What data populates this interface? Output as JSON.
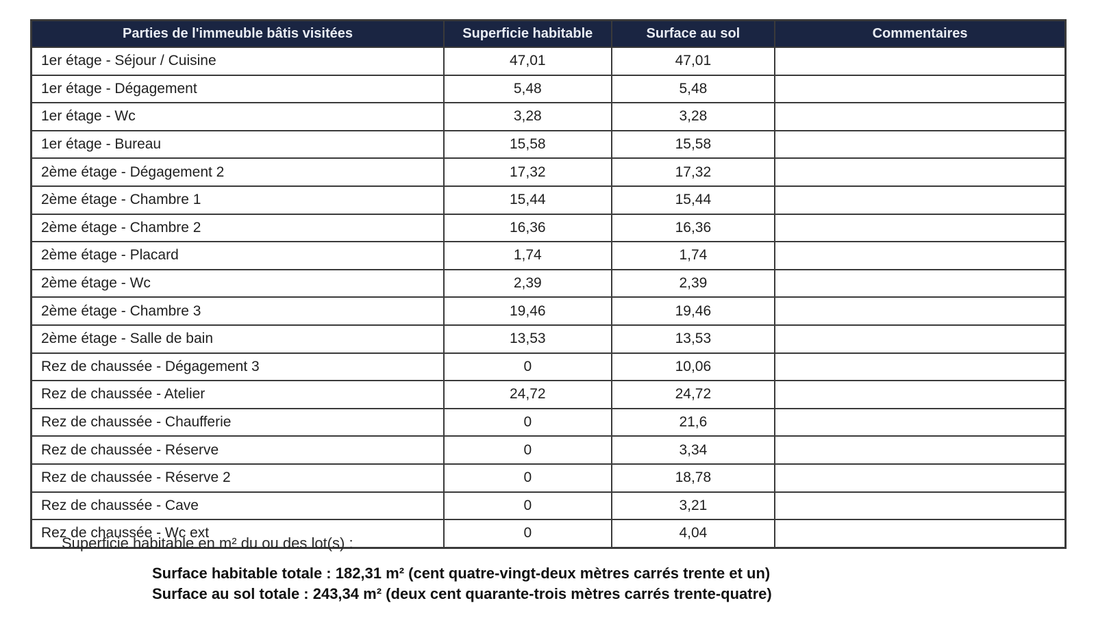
{
  "colors": {
    "header_bg": "#1a2542",
    "header_text": "#e9edf4",
    "border": "#3a3a3a"
  },
  "table": {
    "headers": [
      "Parties de l'immeuble bâtis visitées",
      "Superficie habitable",
      "Surface au sol",
      "Commentaires"
    ],
    "rows": [
      {
        "label": "1er étage - Séjour / Cuisine",
        "superficie": "47,01",
        "surface": "47,01",
        "commentaires": ""
      },
      {
        "label": "1er étage - Dégagement",
        "superficie": "5,48",
        "surface": "5,48",
        "commentaires": ""
      },
      {
        "label": "1er étage - Wc",
        "superficie": "3,28",
        "surface": "3,28",
        "commentaires": ""
      },
      {
        "label": "1er étage - Bureau",
        "superficie": "15,58",
        "surface": "15,58",
        "commentaires": ""
      },
      {
        "label": "2ème étage - Dégagement 2",
        "superficie": "17,32",
        "surface": "17,32",
        "commentaires": ""
      },
      {
        "label": "2ème étage - Chambre 1",
        "superficie": "15,44",
        "surface": "15,44",
        "commentaires": ""
      },
      {
        "label": "2ème étage - Chambre 2",
        "superficie": "16,36",
        "surface": "16,36",
        "commentaires": ""
      },
      {
        "label": "2ème étage - Placard",
        "superficie": "1,74",
        "surface": "1,74",
        "commentaires": ""
      },
      {
        "label": "2ème étage - Wc",
        "superficie": "2,39",
        "surface": "2,39",
        "commentaires": ""
      },
      {
        "label": "2ème étage - Chambre 3",
        "superficie": "19,46",
        "surface": "19,46",
        "commentaires": ""
      },
      {
        "label": "2ème étage - Salle de bain",
        "superficie": "13,53",
        "surface": "13,53",
        "commentaires": ""
      },
      {
        "label": "Rez de chaussée - Dégagement 3",
        "superficie": "0",
        "surface": "10,06",
        "commentaires": ""
      },
      {
        "label": "Rez de chaussée - Atelier",
        "superficie": "24,72",
        "surface": "24,72",
        "commentaires": ""
      },
      {
        "label": "Rez de chaussée - Chaufferie",
        "superficie": "0",
        "surface": "21,6",
        "commentaires": ""
      },
      {
        "label": "Rez de chaussée - Réserve",
        "superficie": "0",
        "surface": "3,34",
        "commentaires": ""
      },
      {
        "label": "Rez de chaussée - Réserve 2",
        "superficie": "0",
        "surface": "18,78",
        "commentaires": ""
      },
      {
        "label": "Rez de chaussée - Cave",
        "superficie": "0",
        "surface": "3,21",
        "commentaires": ""
      },
      {
        "label": "Rez de chaussée - Wc ext",
        "superficie": "0",
        "surface": "4,04",
        "commentaires": ""
      }
    ]
  },
  "footer": {
    "intro": "Superficie habitable en m² du ou des lot(s) :",
    "total_habitable": "Surface habitable totale : 182,31 m² (cent quatre-vingt-deux mètres carrés trente et un)",
    "total_sol": "Surface au sol totale : 243,34 m² (deux cent quarante-trois mètres carrés trente-quatre)"
  }
}
